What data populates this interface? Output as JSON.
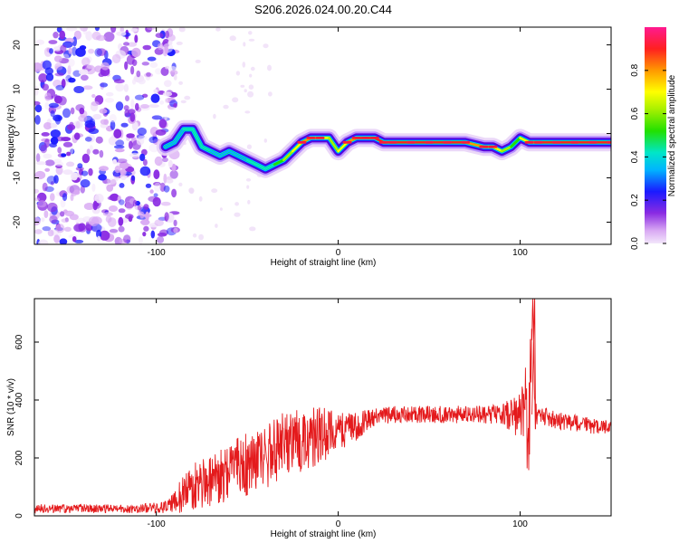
{
  "title": "S206.2026.024.00.20.C44",
  "colors": {
    "snr_line": "#e41a1c",
    "ridge_core": "#ff1a3c",
    "axis": "#000000"
  },
  "chart_data": [
    {
      "type": "heatmap",
      "name": "spectrogram",
      "xlabel": "Height of straight line (km)",
      "ylabel": "Frequency (Hz)",
      "xlim": [
        -167,
        150
      ],
      "ylim": [
        -25,
        24
      ],
      "xticks": [
        "-100",
        "0",
        "100"
      ],
      "yticks": [
        "-20",
        "-10",
        "0",
        "10",
        "20"
      ],
      "noise_region_x": [
        -167,
        -95
      ],
      "ridge": {
        "x": [
          -95,
          -90,
          -85,
          -80,
          -75,
          -70,
          -65,
          -60,
          -55,
          -50,
          -45,
          -40,
          -35,
          -30,
          -25,
          -20,
          -15,
          -10,
          -5,
          0,
          5,
          10,
          15,
          20,
          25,
          30,
          40,
          50,
          60,
          70,
          80,
          85,
          90,
          95,
          100,
          105,
          110,
          120,
          130,
          140,
          150
        ],
        "y": [
          -3,
          -2,
          1,
          1,
          -3,
          -4,
          -5,
          -4,
          -5,
          -6,
          -7,
          -8,
          -7,
          -6,
          -4,
          -2,
          -1,
          -1,
          -1,
          -4,
          -2,
          -1,
          -1,
          -1,
          -2,
          -2,
          -2,
          -2,
          -2,
          -2,
          -3,
          -3,
          -4,
          -3,
          -1,
          -2,
          -2,
          -2,
          -2,
          -2,
          -2
        ],
        "amplitude": [
          0.3,
          0.4,
          0.4,
          0.5,
          0.45,
          0.4,
          0.4,
          0.4,
          0.3,
          0.4,
          0.5,
          0.4,
          0.5,
          0.6,
          0.7,
          0.8,
          0.8,
          0.8,
          0.7,
          0.6,
          0.8,
          0.9,
          0.9,
          0.9,
          0.9,
          0.9,
          1.0,
          0.9,
          0.9,
          0.9,
          0.8,
          0.8,
          0.7,
          0.6,
          0.6,
          0.8,
          0.9,
          1.0,
          0.9,
          0.9,
          0.9
        ]
      },
      "colorbar": {
        "label": "Normalized spectral amplitude",
        "range": [
          0,
          1
        ],
        "ticks": [
          "0.0",
          "0.2",
          "0.4",
          "0.6",
          "0.8"
        ]
      }
    },
    {
      "type": "line",
      "name": "snr",
      "xlabel": "Height of straight line (km)",
      "ylabel": "SNR (10 * v/v)",
      "xlim": [
        -167,
        150
      ],
      "ylim": [
        0,
        750
      ],
      "xticks": [
        "-100",
        "0",
        "100"
      ],
      "yticks": [
        "0",
        "200",
        "400",
        "600"
      ],
      "series": [
        {
          "name": "SNR",
          "x": [
            -167,
            -150,
            -130,
            -110,
            -95,
            -90,
            -85,
            -80,
            -70,
            -60,
            -50,
            -40,
            -30,
            -20,
            -10,
            0,
            10,
            20,
            30,
            40,
            50,
            60,
            70,
            80,
            90,
            95,
            100,
            103,
            105,
            107,
            108,
            110,
            115,
            120,
            130,
            140,
            150
          ],
          "values": [
            25,
            25,
            25,
            25,
            30,
            45,
            80,
            100,
            120,
            150,
            180,
            210,
            240,
            260,
            280,
            290,
            310,
            340,
            350,
            350,
            350,
            350,
            350,
            350,
            350,
            350,
            340,
            380,
            300,
            760,
            350,
            350,
            340,
            330,
            320,
            310,
            300
          ],
          "spread": [
            15,
            15,
            15,
            15,
            20,
            40,
            70,
            80,
            90,
            100,
            110,
            120,
            120,
            110,
            100,
            70,
            50,
            30,
            30,
            30,
            30,
            30,
            30,
            30,
            40,
            60,
            80,
            150,
            250,
            0,
            60,
            30,
            30,
            30,
            30,
            30,
            30
          ]
        }
      ]
    }
  ]
}
